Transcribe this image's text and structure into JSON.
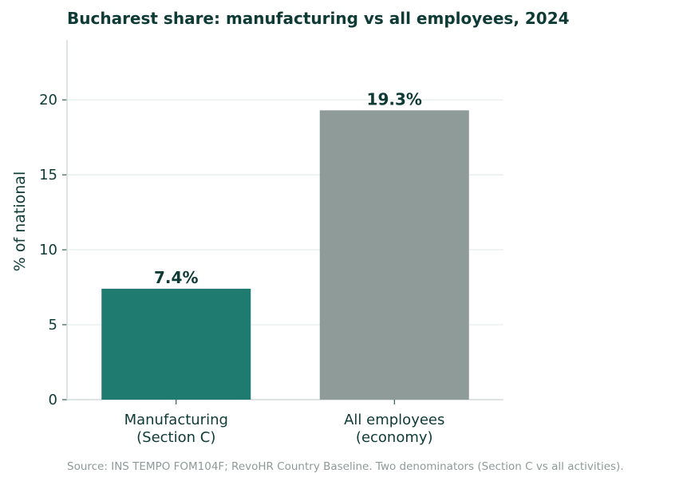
{
  "chart_data": {
    "type": "bar",
    "title": "Bucharest share: manufacturing vs all employees, 2024",
    "ylabel": "% of national",
    "xlabel": "",
    "categories": [
      [
        "Manufacturing",
        "(Section C)"
      ],
      [
        "All employees",
        "(economy)"
      ]
    ],
    "values": [
      7.4,
      19.3
    ],
    "value_labels": [
      "7.4%",
      "19.3%"
    ],
    "colors": [
      "#1f7a70",
      "#8f9b98"
    ],
    "ylim": [
      0,
      24
    ],
    "yticks": [
      0,
      5,
      10,
      15,
      20
    ],
    "grid": "horizontal",
    "source": "Source: INS TEMPO FOM104F; RevoHR Country Baseline. Two denominators (Section C vs all activities)."
  }
}
